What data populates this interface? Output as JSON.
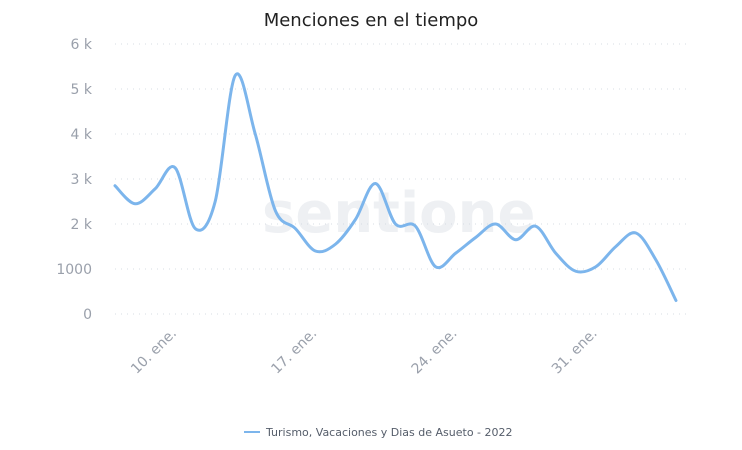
{
  "chart_data": {
    "type": "line",
    "title": "Menciones en el tiempo",
    "watermark": "sentione",
    "y_ticks": [
      "0",
      "1000",
      "2 k",
      "3 k",
      "4 k",
      "5 k",
      "6 k"
    ],
    "ylim": [
      0,
      6000
    ],
    "x_ticks": [
      {
        "label": "10. ene.",
        "day": 10
      },
      {
        "label": "17. ene.",
        "day": 17
      },
      {
        "label": "24. ene.",
        "day": 24
      },
      {
        "label": "31. ene.",
        "day": 31
      }
    ],
    "xlim": [
      7,
      35.5
    ],
    "grid": true,
    "legend_position": "bottom-center",
    "series": [
      {
        "name": "Turismo, Vacaciones y Dias de Asueto - 2022",
        "color": "#7cb5ec",
        "points": [
          {
            "day": 7,
            "value": 2850
          },
          {
            "day": 8,
            "value": 2450
          },
          {
            "day": 9,
            "value": 2780
          },
          {
            "day": 10,
            "value": 3250
          },
          {
            "day": 11,
            "value": 1900
          },
          {
            "day": 12,
            "value": 2500
          },
          {
            "day": 13,
            "value": 5300
          },
          {
            "day": 14,
            "value": 4000
          },
          {
            "day": 15,
            "value": 2300
          },
          {
            "day": 16,
            "value": 1900
          },
          {
            "day": 17,
            "value": 1400
          },
          {
            "day": 18,
            "value": 1550
          },
          {
            "day": 19,
            "value": 2100
          },
          {
            "day": 20,
            "value": 2900
          },
          {
            "day": 21,
            "value": 2000
          },
          {
            "day": 22,
            "value": 1950
          },
          {
            "day": 23,
            "value": 1050
          },
          {
            "day": 24,
            "value": 1350
          },
          {
            "day": 25,
            "value": 1700
          },
          {
            "day": 26,
            "value": 2000
          },
          {
            "day": 27,
            "value": 1650
          },
          {
            "day": 28,
            "value": 1950
          },
          {
            "day": 29,
            "value": 1350
          },
          {
            "day": 30,
            "value": 950
          },
          {
            "day": 31,
            "value": 1050
          },
          {
            "day": 32,
            "value": 1500
          },
          {
            "day": 33,
            "value": 1800
          },
          {
            "day": 34,
            "value": 1200
          },
          {
            "day": 35,
            "value": 300
          }
        ]
      }
    ]
  }
}
